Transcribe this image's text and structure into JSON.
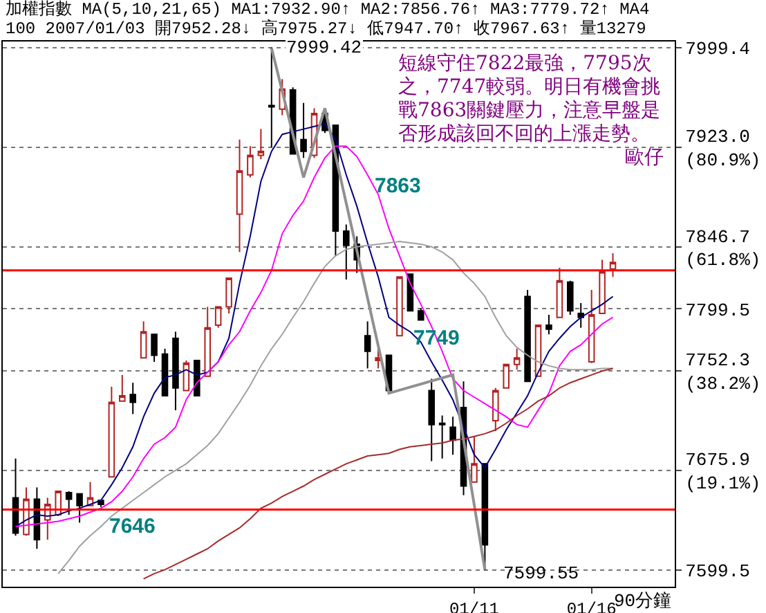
{
  "chart_data": {
    "type": "candlestick",
    "title": "加權指數 MA(5,10,21,65) MA1:7932.90↑ MA2:7856.76↑ MA3:7779.72↑ MA4",
    "subtitle": "100 2007/01/03 開7952.28↓ 高7975.27↓ 低7947.70↑ 收7967.63↑ 量13279",
    "categories": [
      null,
      null,
      null,
      null,
      null,
      null,
      null,
      null,
      null,
      null,
      null,
      null,
      null,
      null,
      null,
      null,
      null,
      null,
      null,
      null,
      null,
      null,
      null,
      null,
      null,
      null,
      null,
      null,
      null,
      null,
      null,
      null,
      null,
      null,
      null,
      null,
      null,
      null,
      null,
      null,
      null,
      null,
      null,
      "01/11",
      null,
      null,
      null,
      null,
      null,
      null,
      null,
      null,
      null,
      null,
      "01/16",
      null,
      null
    ],
    "ohlc": [
      [
        7655,
        7685,
        7626,
        7628
      ],
      [
        7627,
        7663,
        7626,
        7654
      ],
      [
        7654,
        7663,
        7616,
        7623
      ],
      [
        7638,
        7655,
        7623,
        7650
      ],
      [
        7642,
        7660,
        7641,
        7660
      ],
      [
        7659,
        7660,
        7642,
        7654
      ],
      [
        7658,
        7658,
        7636,
        7649
      ],
      [
        7649,
        7667,
        7649,
        7655
      ],
      [
        7653,
        7653,
        7648,
        7650
      ],
      [
        7671,
        7740,
        7671,
        7728
      ],
      [
        7729,
        7749,
        7729,
        7733
      ],
      [
        7734,
        7743,
        7719,
        7728
      ],
      [
        7762,
        7790,
        7762,
        7782
      ],
      [
        7780,
        7780,
        7759,
        7764
      ],
      [
        7765,
        7769,
        7733,
        7733
      ],
      [
        7777,
        7782,
        7722,
        7739
      ],
      [
        7737,
        7760,
        7737,
        7758
      ],
      [
        7760,
        7760,
        7733,
        7733
      ],
      [
        7748,
        7801,
        7748,
        7785
      ],
      [
        7787,
        7801,
        7785,
        7801
      ],
      [
        7801,
        7823,
        7796,
        7823
      ],
      [
        7872,
        7929,
        7843,
        7905
      ],
      [
        7902,
        7924,
        7900,
        7917
      ],
      [
        7917,
        7937,
        7914,
        7920
      ],
      [
        7955,
        7999.42,
        7923,
        7954
      ],
      [
        7952.28,
        7975.27,
        7947.7,
        7967.63
      ],
      [
        7967,
        7969,
        7918,
        7918
      ],
      [
        7929,
        7957,
        7915,
        7920
      ],
      [
        7917,
        7953,
        7915,
        7949
      ],
      [
        7949,
        7953,
        7934,
        7936
      ],
      [
        7940,
        7940,
        7840,
        7859
      ],
      [
        7859,
        7864,
        7822,
        7848
      ],
      [
        7849,
        7855,
        7827,
        7837
      ],
      [
        7779,
        7790,
        7754,
        7767
      ],
      [
        7760,
        7769,
        7754,
        7762
      ],
      [
        7764,
        7764,
        7737,
        7737
      ],
      [
        7779,
        7824,
        7779,
        7824
      ],
      [
        7826,
        7826,
        7798,
        7798
      ],
      [
        7798,
        7800,
        7791,
        7791
      ],
      [
        7737,
        7746,
        7683,
        7711
      ],
      [
        7712,
        7718,
        7685,
        7711
      ],
      [
        7709,
        7717,
        7688,
        7699
      ],
      [
        7724,
        7744,
        7657,
        7664
      ],
      [
        7667,
        7702,
        7667,
        7681
      ],
      [
        7681,
        7681,
        7599.55,
        7619
      ],
      [
        7714,
        7739,
        7706,
        7737
      ],
      [
        7739,
        7757,
        7739,
        7757
      ],
      [
        7757,
        7769,
        7753,
        7762
      ],
      [
        7809,
        7814,
        7744,
        7744
      ],
      [
        7748,
        7787,
        7748,
        7787
      ],
      [
        7787,
        7795,
        7780,
        7784
      ],
      [
        7793,
        7831,
        7793,
        7821
      ],
      [
        7820,
        7821,
        7795,
        7798
      ],
      [
        7796,
        7804,
        7785,
        7793
      ],
      [
        7759,
        7814,
        7758,
        7795
      ],
      [
        7796,
        7837,
        7796,
        7828
      ],
      [
        7830,
        7842,
        7824,
        7835
      ]
    ],
    "series": [
      {
        "type": "line",
        "color": "#000080",
        "values": [
          7633,
          7638,
          7642,
          7641,
          7642,
          7645,
          7647,
          7650,
          7653,
          7665,
          7678,
          7694,
          7717,
          7735,
          7747,
          7749,
          7753,
          7749,
          7751,
          7759,
          7777,
          7819,
          7855,
          7897,
          7920,
          7933,
          7935,
          7937,
          7939,
          7941,
          7929,
          7902,
          7878,
          7850,
          7824,
          7793,
          7787,
          7782,
          7774,
          7759,
          7745,
          7730,
          7709,
          7688,
          7678,
          7692,
          7707,
          7720,
          7733,
          7751,
          7767,
          7777,
          7786,
          7793,
          7798,
          7803,
          7809
        ]
      },
      {
        "type": "line",
        "color": "#ff00ff",
        "values": [
          7633,
          7634,
          7635,
          7636,
          7637,
          7639,
          7641,
          7644,
          7647,
          7652,
          7660,
          7671,
          7685,
          7696,
          7701,
          7709,
          7730,
          7743,
          7751,
          7759,
          7772,
          7782,
          7798,
          7812,
          7829,
          7857,
          7871,
          7882,
          7900,
          7915,
          7924,
          7924,
          7916,
          7902,
          7887,
          7861,
          7840,
          7819,
          7803,
          7786,
          7767,
          7746,
          7737,
          7732,
          7727,
          7722,
          7717,
          7711,
          7709,
          7722,
          7735,
          7756,
          7767,
          7772,
          7780,
          7788,
          7793
        ]
      },
      {
        "type": "line",
        "color": "#a0a0a0",
        "values": [
          null,
          null,
          null,
          null,
          7597,
          7607,
          7618,
          7626,
          7633,
          7641,
          7647,
          7653,
          7659,
          7665,
          7671,
          7676,
          7681,
          7688,
          7695,
          7704,
          7716,
          7728,
          7741,
          7756,
          7769,
          7780,
          7793,
          7805,
          7819,
          7832,
          7840,
          7845,
          7847,
          7848,
          7849,
          7850,
          7851,
          7850,
          7849,
          7847,
          7843,
          7837,
          7827,
          7819,
          7809,
          7793,
          7779,
          7770,
          7764,
          7759,
          7756,
          7754,
          7753,
          7753,
          7753,
          7754,
          7754
        ]
      },
      {
        "type": "line",
        "color": "#a52a2a",
        "values": [
          null,
          null,
          null,
          null,
          null,
          null,
          null,
          null,
          null,
          null,
          null,
          null,
          7593,
          7597,
          7600,
          7604,
          7608,
          7612,
          7616,
          7622,
          7627,
          7632,
          7639,
          7647,
          7651,
          7656,
          7660,
          7664,
          7669,
          7673,
          7677,
          7681,
          7684,
          7687,
          7688,
          7689,
          7692,
          7694,
          7695,
          7696,
          7697,
          7699,
          7700,
          7702,
          7704,
          7707,
          7712,
          7718,
          7723,
          7729,
          7733,
          7739,
          7743,
          7746,
          7749,
          7752,
          7754
        ]
      },
      {
        "type": "line",
        "color": "#909090",
        "values": [
          null,
          null,
          null,
          null,
          null,
          null,
          null,
          null,
          null,
          null,
          null,
          null,
          null,
          null,
          null,
          null,
          null,
          null,
          null,
          null,
          null,
          null,
          null,
          null,
          7999,
          null,
          null,
          7900,
          null,
          7953,
          null,
          null,
          null,
          null,
          null,
          7735,
          null,
          null,
          null,
          null,
          null,
          7749,
          null,
          null,
          7600,
          null,
          null,
          null,
          null,
          null,
          null,
          null,
          null,
          null,
          null,
          null,
          null
        ]
      }
    ],
    "ylim": [
      7587,
      8004
    ],
    "yticks": [
      {
        "value": 7999.42,
        "label": "7999.4"
      },
      {
        "value": 7923.05,
        "label": "7923.0\n(80.9%)"
      },
      {
        "value": 7846.67,
        "label": "7846.7\n(61.8%)"
      },
      {
        "value": 7799.49,
        "label": "7799.5"
      },
      {
        "value": 7752.3,
        "label": "7752.3\n(38.2%)"
      },
      {
        "value": 7675.93,
        "label": "7675.9\n(19.1%)"
      },
      {
        "value": 7599.55,
        "label": "7599.5"
      }
    ],
    "grid": "y",
    "ref_lines": [
      {
        "axis": "y",
        "value": 7646,
        "label": "7646",
        "color": "#ff0000"
      },
      {
        "axis": "y",
        "value": 7829,
        "label": null,
        "color": "#ff0000"
      }
    ],
    "annotations": [
      "7999.42",
      "7599.55",
      "7863",
      "7749",
      "短線守住7822最強，7795次之，7747較弱。明日有機會挑戰7863關鍵壓力，注意早盤是否形成該回不回的上漲走勢。",
      "歐仔",
      "90分鐘"
    ]
  }
}
